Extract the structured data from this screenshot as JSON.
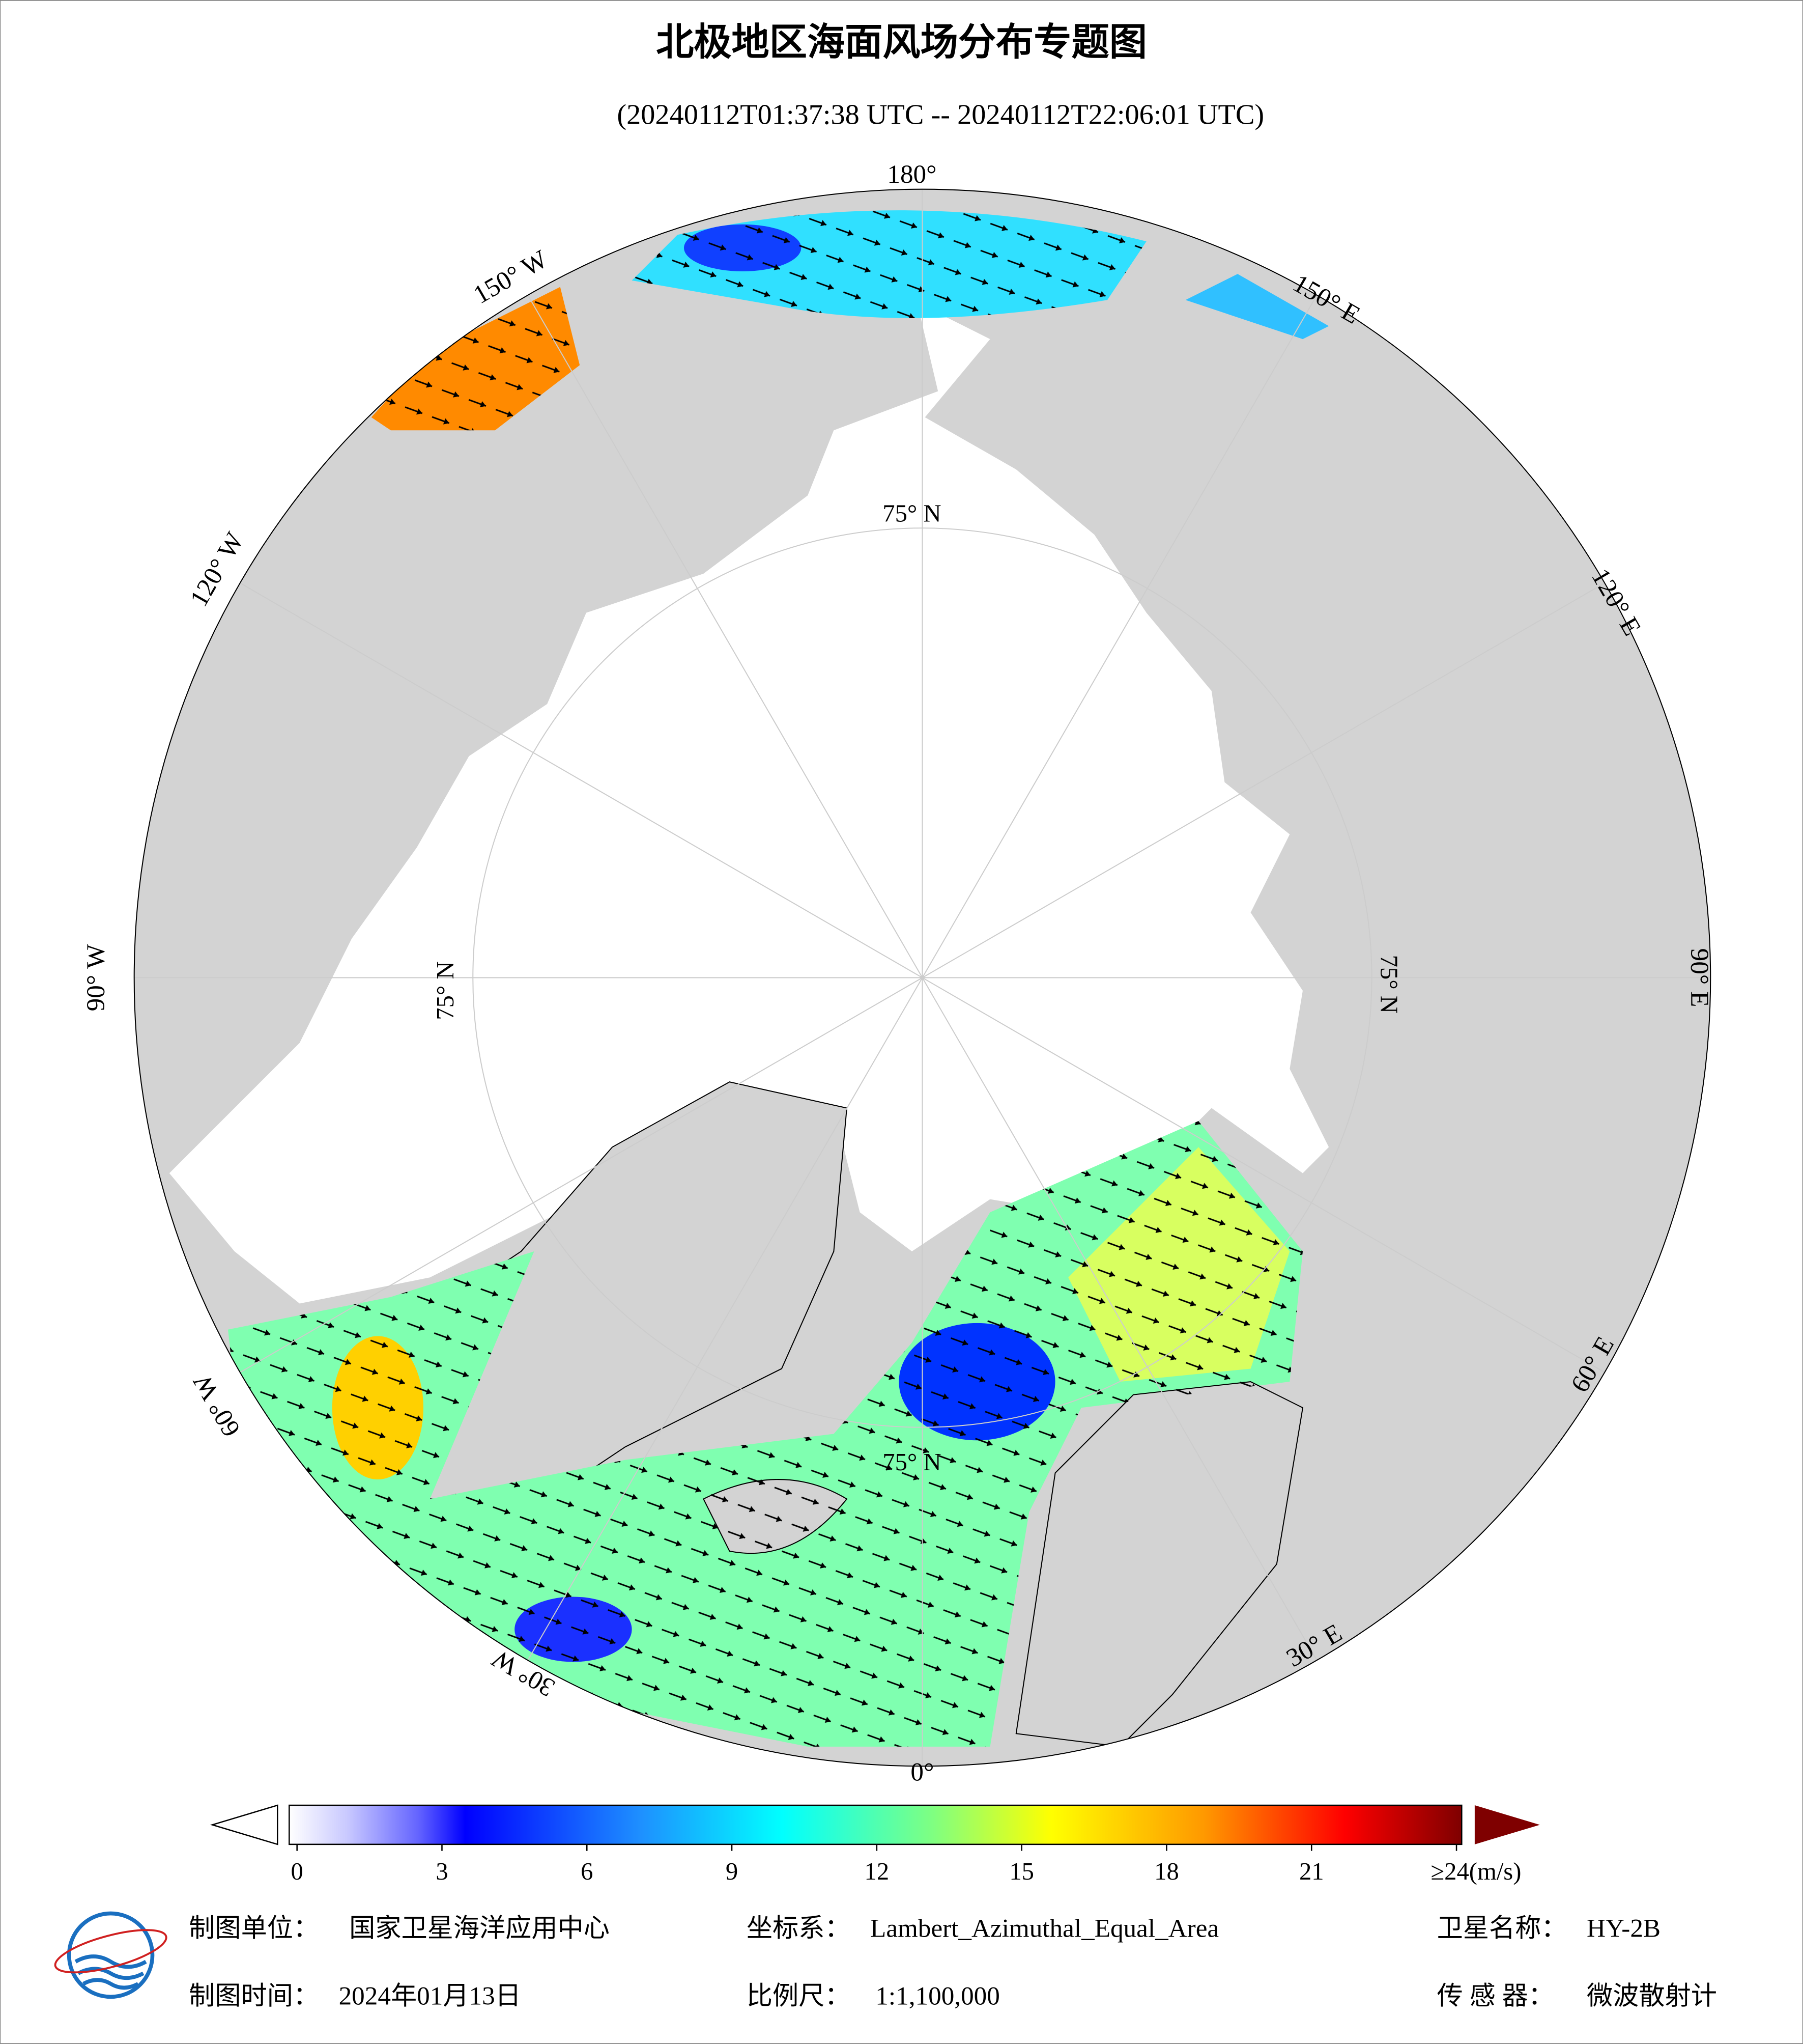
{
  "title": "北极地区海面风场分布专题图",
  "subtitle": "(20240112T01:37:38 UTC -- 20240112T22:06:01 UTC)",
  "map": {
    "longitude_labels": [
      "180°",
      "150° E",
      "120° E",
      "90° E",
      "60° E",
      "30° E",
      "0°",
      "30° W",
      "60° W",
      "90° W",
      "120° W",
      "150° W"
    ],
    "latitude_labels": [
      "75° N",
      "75° N",
      "75° N",
      "75° N"
    ]
  },
  "colorbar": {
    "range": [
      0,
      24
    ],
    "ticks": [
      0,
      3,
      6,
      9,
      12,
      15,
      18,
      21,
      {
        "value": 24,
        "label": "≥24(m/s)"
      }
    ]
  },
  "footer": {
    "producer": {
      "label": "制图单位：",
      "value": "国家卫星海洋应用中心"
    },
    "date": {
      "label": "制图时间：",
      "value": "2024年01月13日"
    },
    "projection": {
      "label": "坐标系：",
      "value": "Lambert_Azimuthal_Equal_Area"
    },
    "scale": {
      "label": "比例尺：",
      "value": "1:1,100,000"
    },
    "satellite": {
      "label": "卫星名称：",
      "value": "HY-2B"
    },
    "sensor": {
      "label": "传 感 器：",
      "value": "微波散射计"
    }
  }
}
